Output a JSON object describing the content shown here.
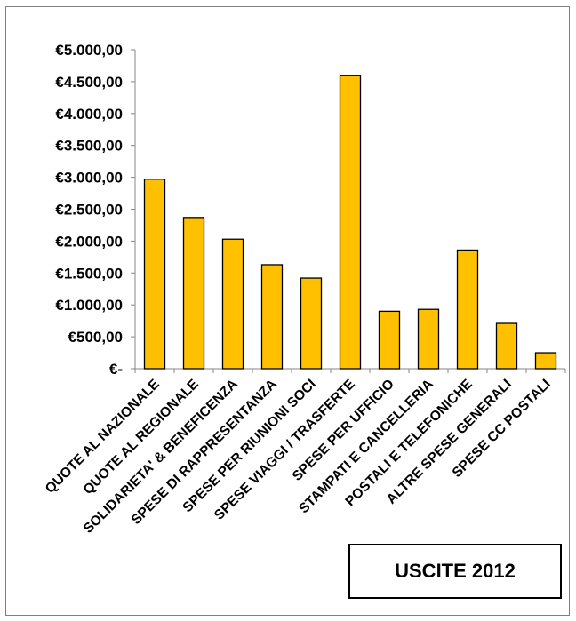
{
  "chart_data": {
    "type": "bar",
    "title": "USCITE 2012",
    "categories": [
      "QUOTE AL NAZIONALE",
      "QUOTE AL REGIONALE",
      "SOLIDARIETA' & BENEFICENZA",
      "SPESE DI RAPPRESENTANZA",
      "SPESE PER RIUNIONI SOCI",
      "SPESE VIAGGI / TRASFERTE",
      "SPESE PER UFFICIO",
      "STAMPATI E CANCELLERIA",
      "POSTALI E TELEFONICHE",
      "ALTRE SPESE GENERALI",
      "SPESE CC POSTALI"
    ],
    "values": [
      2970,
      2370,
      2030,
      1630,
      1420,
      4600,
      900,
      930,
      1860,
      710,
      250
    ],
    "ylim": [
      0,
      5000
    ],
    "yticks": [
      0,
      500,
      1000,
      1500,
      2000,
      2500,
      3000,
      3500,
      4000,
      4500,
      5000
    ],
    "ytick_labels": [
      "€-",
      "€500,00",
      "€1.000,00",
      "€1.500,00",
      "€2.000,00",
      "€2.500,00",
      "€3.000,00",
      "€3.500,00",
      "€4.000,00",
      "€4.500,00",
      "€5.000,00"
    ],
    "xlabel": "",
    "ylabel": "",
    "grid": false,
    "bar_color": "#FFC000",
    "bar_edge_color": "#000000"
  }
}
